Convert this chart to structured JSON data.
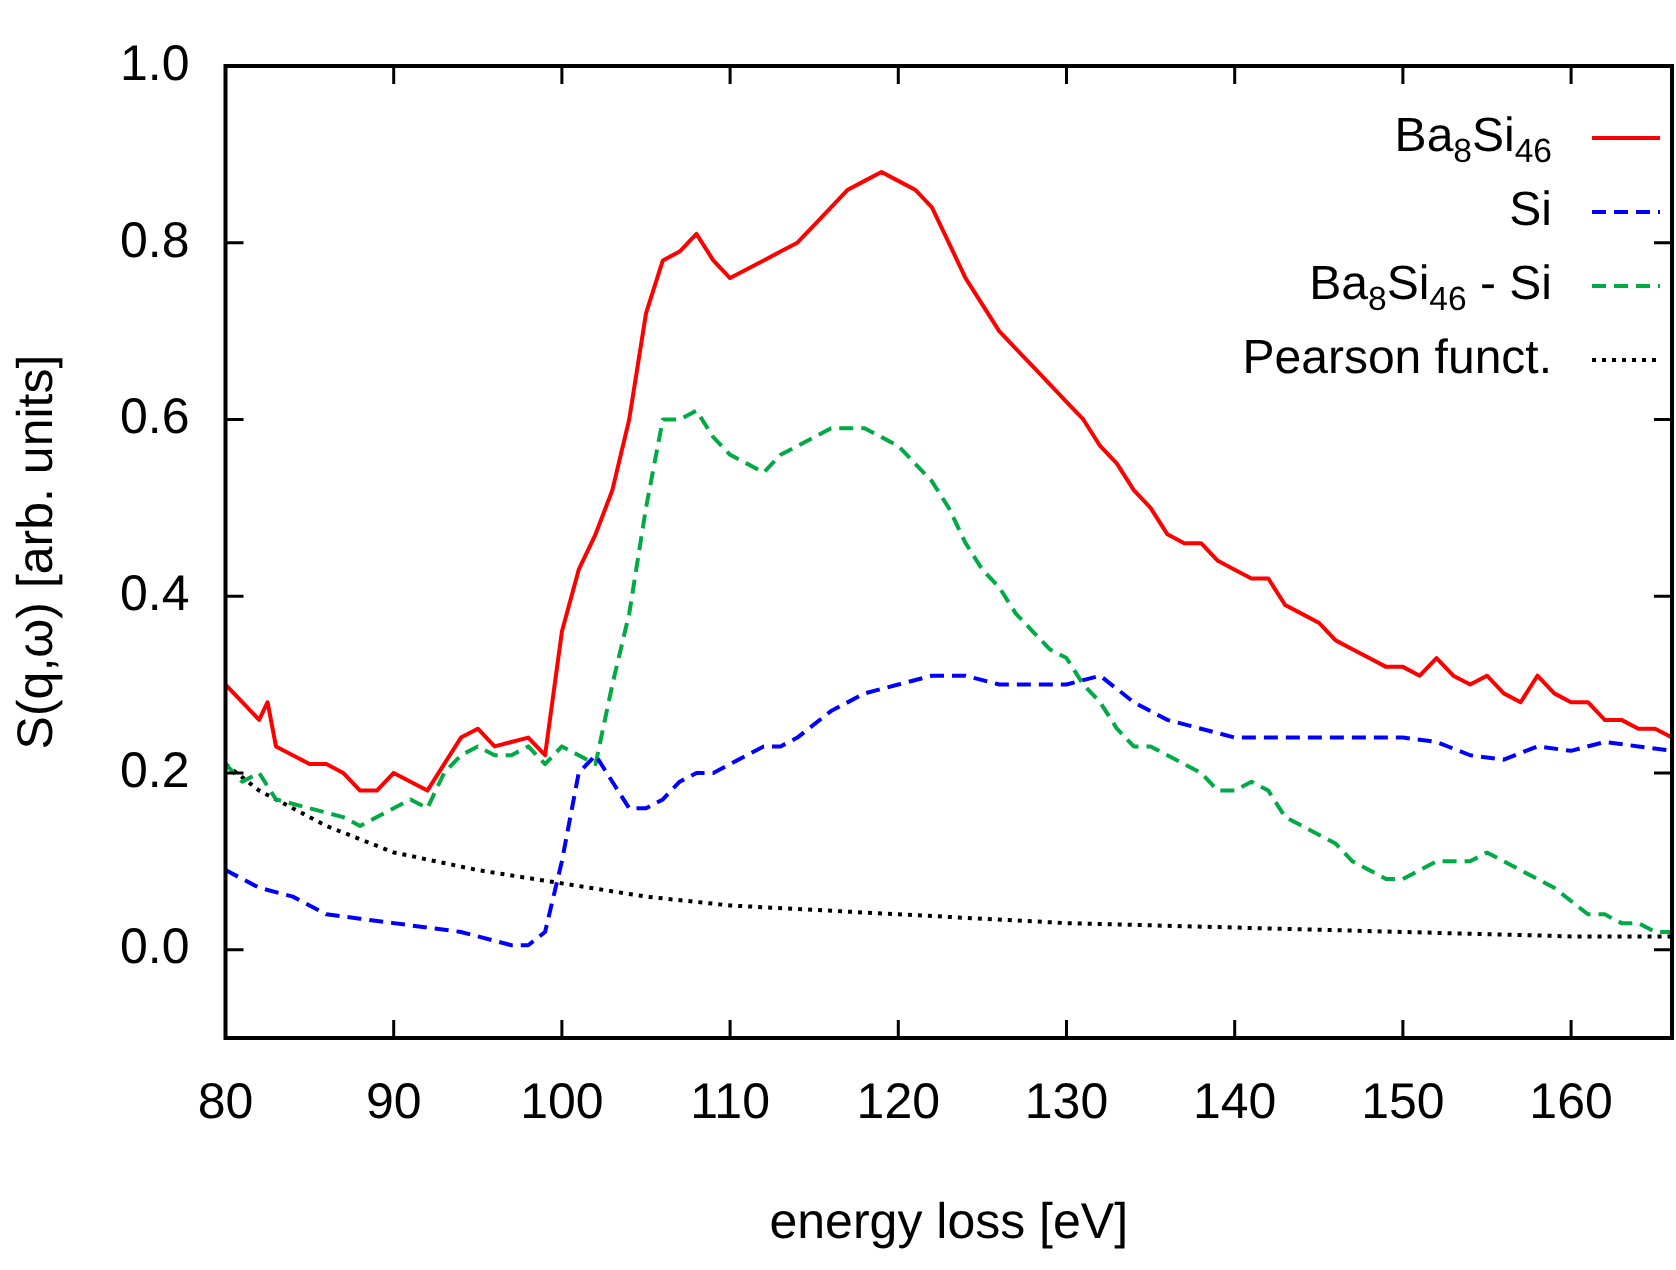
{
  "chart_data": {
    "type": "line",
    "xlabel": "energy loss [eV]",
    "ylabel": "S(q,ω) [arb. units]",
    "xlim": [
      80,
      166
    ],
    "xticks": [
      80,
      90,
      100,
      110,
      120,
      130,
      140,
      150,
      160
    ],
    "ylim": [
      -0.1,
      1.0
    ],
    "yticks": [
      {
        "value": 0,
        "label": "0.0"
      },
      0.2,
      0.4,
      0.6,
      0.8,
      {
        "value": 1,
        "label": "1.0"
      }
    ],
    "grid": false,
    "legend": "top right",
    "marker": "none",
    "series": [
      {
        "name": "Ba$_{8}$Si$_{46}$",
        "color": "#ff0000",
        "line_style": "solid",
        "x": [
          80,
          81,
          82,
          82.5,
          83,
          84,
          85,
          86,
          87,
          88,
          89,
          90,
          91,
          92,
          93,
          94,
          95,
          96,
          97,
          98,
          99,
          100,
          101,
          102,
          103,
          104,
          105,
          106,
          107,
          108,
          109,
          110,
          111,
          112,
          113,
          114,
          115,
          116,
          117,
          118,
          119,
          120,
          121,
          122,
          123,
          124,
          125,
          126,
          127,
          128,
          129,
          130,
          131,
          132,
          133,
          134,
          135,
          136,
          137,
          138,
          139,
          140,
          141,
          142,
          143,
          144,
          145,
          146,
          147,
          148,
          149,
          150,
          151,
          152,
          153,
          154,
          155,
          156,
          157,
          158,
          159,
          160,
          161,
          162,
          163,
          164,
          165,
          166
        ],
        "values": [
          0.3,
          0.28,
          0.26,
          0.28,
          0.23,
          0.22,
          0.21,
          0.21,
          0.2,
          0.18,
          0.18,
          0.2,
          0.19,
          0.18,
          0.21,
          0.24,
          0.25,
          0.23,
          0.235,
          0.24,
          0.22,
          0.36,
          0.43,
          0.47,
          0.52,
          0.6,
          0.72,
          0.78,
          0.79,
          0.81,
          0.78,
          0.76,
          0.77,
          0.78,
          0.79,
          0.8,
          0.82,
          0.84,
          0.86,
          0.87,
          0.88,
          0.87,
          0.86,
          0.84,
          0.8,
          0.76,
          0.73,
          0.7,
          0.68,
          0.66,
          0.64,
          0.62,
          0.6,
          0.57,
          0.55,
          0.52,
          0.5,
          0.47,
          0.46,
          0.46,
          0.44,
          0.43,
          0.42,
          0.42,
          0.39,
          0.38,
          0.37,
          0.35,
          0.34,
          0.33,
          0.32,
          0.32,
          0.31,
          0.33,
          0.31,
          0.3,
          0.31,
          0.29,
          0.28,
          0.31,
          0.29,
          0.28,
          0.28,
          0.26,
          0.26,
          0.25,
          0.25,
          0.24
        ]
      },
      {
        "name": "Si",
        "color": "#0000ff",
        "line_style": "dashed",
        "x": [
          80,
          82,
          84,
          86,
          88,
          90,
          92,
          94,
          96,
          97,
          98,
          99,
          100,
          101,
          102,
          103,
          104,
          105,
          106,
          107,
          108,
          109,
          110,
          112,
          113,
          114,
          116,
          118,
          120,
          122,
          124,
          126,
          128,
          130,
          132,
          134,
          136,
          138,
          140,
          142,
          144,
          146,
          148,
          150,
          152,
          154,
          156,
          158,
          160,
          162,
          164,
          166
        ],
        "values": [
          0.09,
          0.07,
          0.06,
          0.04,
          0.035,
          0.03,
          0.025,
          0.02,
          0.01,
          0.005,
          0.005,
          0.02,
          0.1,
          0.2,
          0.22,
          0.19,
          0.16,
          0.16,
          0.17,
          0.19,
          0.2,
          0.2,
          0.21,
          0.23,
          0.23,
          0.24,
          0.27,
          0.29,
          0.3,
          0.31,
          0.31,
          0.3,
          0.3,
          0.3,
          0.31,
          0.28,
          0.26,
          0.25,
          0.24,
          0.24,
          0.24,
          0.24,
          0.24,
          0.24,
          0.235,
          0.22,
          0.215,
          0.23,
          0.225,
          0.235,
          0.23,
          0.225
        ]
      },
      {
        "name": "Ba$_{8}$Si$_{46}$ - Si",
        "color": "#00aa44",
        "line_style": "dashed",
        "x": [
          80,
          81,
          82,
          83,
          85,
          87,
          88,
          89,
          90,
          91,
          92,
          93,
          94,
          95,
          96,
          97,
          98,
          99,
          100,
          101,
          102,
          103,
          104,
          105,
          106,
          107,
          108,
          109,
          110,
          111,
          112,
          113,
          114,
          115,
          116,
          117,
          118,
          119,
          120,
          121,
          122,
          123,
          124,
          125,
          126,
          127,
          128,
          129,
          130,
          131,
          132,
          133,
          134,
          135,
          136,
          137,
          138,
          139,
          140,
          141,
          142,
          143,
          144,
          145,
          146,
          147,
          148,
          149,
          150,
          151,
          152,
          153,
          154,
          155,
          156,
          157,
          158,
          159,
          160,
          161,
          162,
          163,
          164,
          165,
          166
        ],
        "values": [
          0.21,
          0.19,
          0.2,
          0.17,
          0.16,
          0.15,
          0.14,
          0.15,
          0.16,
          0.17,
          0.16,
          0.2,
          0.22,
          0.23,
          0.22,
          0.22,
          0.23,
          0.21,
          0.23,
          0.22,
          0.21,
          0.3,
          0.38,
          0.5,
          0.6,
          0.6,
          0.61,
          0.58,
          0.56,
          0.55,
          0.54,
          0.56,
          0.57,
          0.58,
          0.59,
          0.59,
          0.59,
          0.58,
          0.57,
          0.55,
          0.53,
          0.5,
          0.46,
          0.43,
          0.41,
          0.38,
          0.36,
          0.34,
          0.33,
          0.3,
          0.28,
          0.25,
          0.23,
          0.23,
          0.22,
          0.21,
          0.2,
          0.18,
          0.18,
          0.19,
          0.18,
          0.15,
          0.14,
          0.13,
          0.12,
          0.1,
          0.09,
          0.08,
          0.08,
          0.09,
          0.1,
          0.1,
          0.1,
          0.11,
          0.1,
          0.09,
          0.08,
          0.07,
          0.055,
          0.04,
          0.04,
          0.03,
          0.03,
          0.02,
          0.02
        ]
      },
      {
        "name": "Pearson funct.",
        "color": "#000000",
        "line_style": "dotted",
        "x": [
          80,
          82,
          84,
          86,
          88,
          90,
          95,
          100,
          105,
          110,
          115,
          120,
          125,
          130,
          140,
          150,
          160,
          166
        ],
        "values": [
          0.21,
          0.18,
          0.16,
          0.14,
          0.125,
          0.11,
          0.09,
          0.075,
          0.06,
          0.05,
          0.045,
          0.04,
          0.035,
          0.03,
          0.025,
          0.02,
          0.015,
          0.015
        ]
      }
    ]
  }
}
